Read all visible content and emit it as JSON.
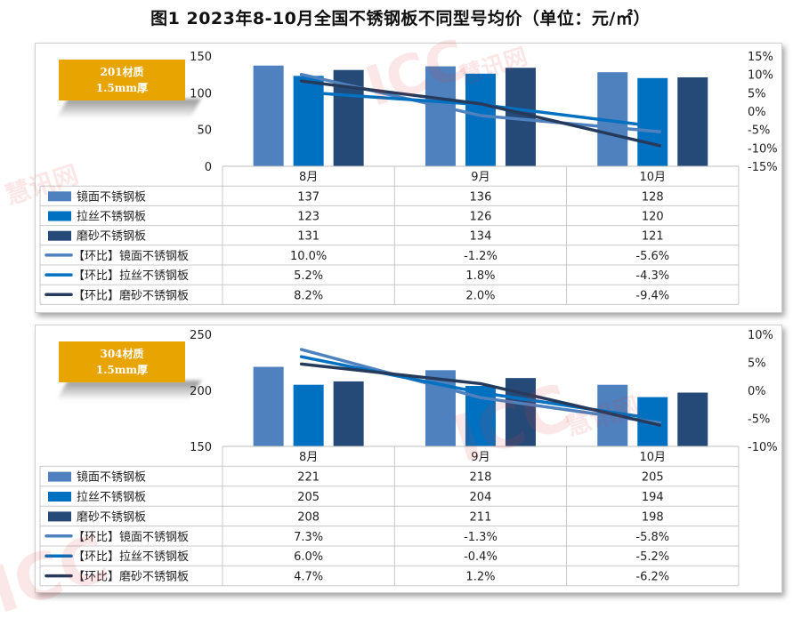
{
  "title": "图1 2023年8-10月全国不锈钢板不同型号均价（单位：元/㎡）",
  "watermark": {
    "logo": "ICC",
    "brand": "慧讯网"
  },
  "chart_data": [
    {
      "type": "bar",
      "badge": [
        "201材质",
        "1.5mm厚"
      ],
      "categories": [
        "8月",
        "9月",
        "10月"
      ],
      "ylim": [
        0,
        150
      ],
      "yticks": [
        "0",
        "50",
        "100",
        "150"
      ],
      "y2lim": [
        -15,
        15
      ],
      "y2ticks": [
        "-15%",
        "-10%",
        "-5%",
        "0%",
        "5%",
        "10%",
        "15%"
      ],
      "bar_series": [
        {
          "name": "镜面不锈钢板",
          "values": [
            137,
            136,
            128
          ],
          "labels": [
            "137",
            "136",
            "128"
          ],
          "color": "#4e81bd"
        },
        {
          "name": "拉丝不锈钢板",
          "values": [
            123,
            126,
            120
          ],
          "labels": [
            "123",
            "126",
            "120"
          ],
          "color": "#0070c0"
        },
        {
          "name": "磨砂不锈钢板",
          "values": [
            131,
            134,
            121
          ],
          "labels": [
            "131",
            "134",
            "121"
          ],
          "color": "#264a78"
        }
      ],
      "line_series": [
        {
          "name": "【环比】镜面不锈钢板",
          "values": [
            10.0,
            -1.2,
            -5.6
          ],
          "labels": [
            "10.0%",
            "-1.2%",
            "-5.6%"
          ],
          "color": "#4e81bd"
        },
        {
          "name": "【环比】拉丝不锈钢板",
          "values": [
            5.2,
            1.8,
            -4.3
          ],
          "labels": [
            "5.2%",
            "1.8%",
            "-4.3%"
          ],
          "color": "#0070c0"
        },
        {
          "name": "【环比】磨砂不锈钢板",
          "values": [
            8.2,
            2.0,
            -9.4
          ],
          "labels": [
            "8.2%",
            "2.0%",
            "-9.4%"
          ],
          "color": "#263a5c"
        }
      ]
    },
    {
      "type": "bar",
      "badge": [
        "304材质",
        "1.5mm厚"
      ],
      "categories": [
        "8月",
        "9月",
        "10月"
      ],
      "ylim": [
        150,
        250
      ],
      "yticks": [
        "150",
        "200",
        "250"
      ],
      "y2lim": [
        -10,
        10
      ],
      "y2ticks": [
        "-10%",
        "-5%",
        "0%",
        "5%",
        "10%"
      ],
      "bar_series": [
        {
          "name": "镜面不锈钢板",
          "values": [
            221,
            218,
            205
          ],
          "labels": [
            "221",
            "218",
            "205"
          ],
          "color": "#4e81bd"
        },
        {
          "name": "拉丝不锈钢板",
          "values": [
            205,
            204,
            194
          ],
          "labels": [
            "205",
            "204",
            "194"
          ],
          "color": "#0070c0"
        },
        {
          "name": "磨砂不锈钢板",
          "values": [
            208,
            211,
            198
          ],
          "labels": [
            "208",
            "211",
            "198"
          ],
          "color": "#264a78"
        }
      ],
      "line_series": [
        {
          "name": "【环比】镜面不锈钢板",
          "values": [
            7.3,
            -1.3,
            -5.8
          ],
          "labels": [
            "7.3%",
            "-1.3%",
            "-5.8%"
          ],
          "color": "#4e81bd"
        },
        {
          "name": "【环比】拉丝不锈钢板",
          "values": [
            6.0,
            -0.4,
            -5.2
          ],
          "labels": [
            "6.0%",
            "-0.4%",
            "-5.2%"
          ],
          "color": "#0070c0"
        },
        {
          "name": "【环比】磨砂不锈钢板",
          "values": [
            4.7,
            1.2,
            -6.2
          ],
          "labels": [
            "4.7%",
            "1.2%",
            "-6.2%"
          ],
          "color": "#263a5c"
        }
      ]
    }
  ]
}
